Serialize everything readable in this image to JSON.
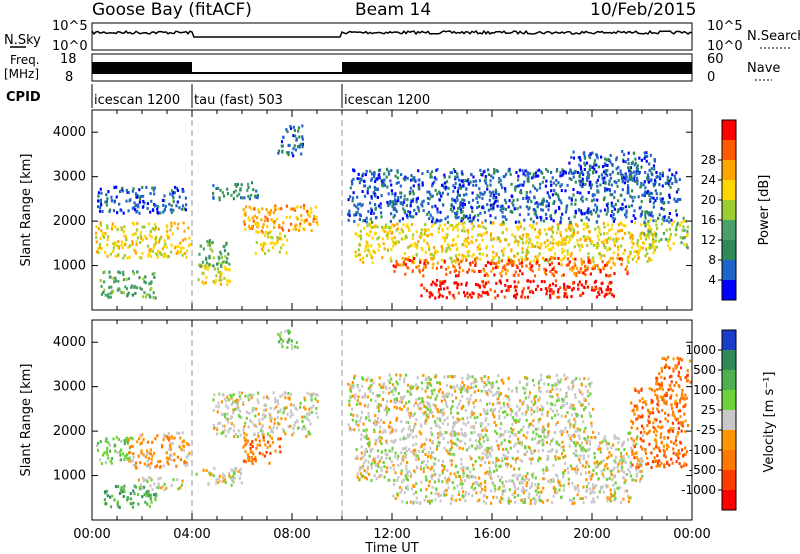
{
  "header": {
    "station": "Goose Bay (fitACF)",
    "beam": "Beam 14",
    "date": "10/Feb/2015"
  },
  "summary": {
    "nsky_label": "N.Sky",
    "nsky_ticks": [
      "10^5",
      "10^0"
    ],
    "nsearch_label": "N.Search",
    "nsearch_ticks": [
      "10^5",
      "10^0"
    ],
    "freq_label": "Freq.",
    "freq_unit": "[MHz]",
    "freq_ticks": [
      "18",
      "8"
    ],
    "nave_label": "Nave",
    "nave_ticks": [
      "60",
      "0"
    ],
    "cpid_label": "CPID",
    "modes": [
      {
        "label": "icescan 1200",
        "start": 0,
        "end": 4.0
      },
      {
        "label": "tau (fast) 503",
        "start": 4.0,
        "end": 10.0
      },
      {
        "label": "icescan 1200",
        "start": 10.0,
        "end": 24.0
      }
    ]
  },
  "chart_data": [
    {
      "type": "heatmap",
      "name": "power",
      "ylabel": "Slant Range [km]",
      "yticks": [
        1000,
        2000,
        3000,
        4000
      ],
      "ylim": [
        0,
        4500
      ],
      "xlim": [
        0,
        24
      ],
      "colorbar_label": "Power [dB]",
      "colorbar_ticks": [
        "4",
        "8",
        "12",
        "16",
        "20",
        "24",
        "28"
      ],
      "colorbar_colors": [
        "#0000ff",
        "#1e64c8",
        "#2e8b57",
        "#4aa06a",
        "#9acd32",
        "#ffd700",
        "#ffa500",
        "#ff5a00",
        "#ff0000"
      ],
      "regions": [
        {
          "t0": 0.1,
          "t1": 3.9,
          "r0": 1200,
          "r1": 2000,
          "level": 5
        },
        {
          "t0": 0.2,
          "t1": 3.8,
          "r0": 2200,
          "r1": 2800,
          "level": 1
        },
        {
          "t0": 0.3,
          "t1": 2.5,
          "r0": 300,
          "r1": 900,
          "level": 3
        },
        {
          "t0": 4.2,
          "t1": 5.5,
          "r0": 600,
          "r1": 1100,
          "level": 5
        },
        {
          "t0": 4.2,
          "t1": 5.5,
          "r0": 1000,
          "r1": 1600,
          "level": 3
        },
        {
          "t0": 4.8,
          "t1": 6.6,
          "r0": 2500,
          "r1": 2900,
          "level": 2
        },
        {
          "t0": 6.0,
          "t1": 9.0,
          "r0": 1800,
          "r1": 2400,
          "level": 6
        },
        {
          "t0": 6.4,
          "t1": 7.8,
          "r0": 1300,
          "r1": 1800,
          "level": 5
        },
        {
          "t0": 7.4,
          "t1": 8.4,
          "r0": 3500,
          "r1": 4200,
          "level": 1
        },
        {
          "t0": 10.5,
          "t1": 22.5,
          "r0": 1100,
          "r1": 2000,
          "level": 5
        },
        {
          "t0": 12.0,
          "t1": 21.5,
          "r0": 800,
          "r1": 1200,
          "level": 7
        },
        {
          "t0": 13.0,
          "t1": 21.0,
          "r0": 300,
          "r1": 700,
          "level": 8
        },
        {
          "t0": 10.2,
          "t1": 23.5,
          "r0": 2000,
          "r1": 3200,
          "level": 1
        },
        {
          "t0": 22.0,
          "t1": 23.8,
          "r0": 1400,
          "r1": 2100,
          "level": 4
        },
        {
          "t0": 19.0,
          "t1": 22.5,
          "r0": 2900,
          "r1": 3600,
          "level": 1
        }
      ]
    },
    {
      "type": "heatmap",
      "name": "velocity",
      "ylabel": "Slant Range [km]",
      "yticks": [
        1000,
        2000,
        3000,
        4000
      ],
      "ylim": [
        0,
        4500
      ],
      "xlim": [
        0,
        24
      ],
      "xlabel": "Time UT",
      "xticks": [
        "00:00",
        "04:00",
        "08:00",
        "12:00",
        "16:00",
        "20:00",
        "00:00"
      ],
      "colorbar_label": "Velocity [m s⁻¹]",
      "colorbar_ticks": [
        "1000",
        "500",
        "100",
        "25",
        "-25",
        "-100",
        "-500",
        "-1000"
      ],
      "colorbar_colors": [
        "#1a3cc8",
        "#2e8b57",
        "#50b050",
        "#6ed23c",
        "#c8c8c8",
        "#ff9600",
        "#ff7800",
        "#ff3c00",
        "#ff0000"
      ],
      "regions": [
        {
          "t0": 0.1,
          "t1": 1.6,
          "r0": 1300,
          "r1": 1900,
          "level": 3
        },
        {
          "t0": 1.4,
          "t1": 3.9,
          "r0": 1200,
          "r1": 2000,
          "level": 5
        },
        {
          "t0": 0.4,
          "t1": 2.6,
          "r0": 300,
          "r1": 800,
          "level": 2
        },
        {
          "t0": 1.8,
          "t1": 3.6,
          "r0": 700,
          "r1": 1000,
          "level": 4
        },
        {
          "t0": 4.1,
          "t1": 6.0,
          "r0": 800,
          "r1": 1200,
          "level": 4
        },
        {
          "t0": 4.8,
          "t1": 9.0,
          "r0": 1900,
          "r1": 2900,
          "level": 4
        },
        {
          "t0": 6.0,
          "t1": 7.5,
          "r0": 1300,
          "r1": 1900,
          "level": 6
        },
        {
          "t0": 7.4,
          "t1": 8.2,
          "r0": 3800,
          "r1": 4300,
          "level": 3
        },
        {
          "t0": 10.5,
          "t1": 22.0,
          "r0": 900,
          "r1": 2000,
          "level": 4
        },
        {
          "t0": 12.0,
          "t1": 21.5,
          "r0": 400,
          "r1": 900,
          "level": 4
        },
        {
          "t0": 21.5,
          "t1": 23.8,
          "r0": 1200,
          "r1": 3000,
          "level": 6
        },
        {
          "t0": 10.2,
          "t1": 20.0,
          "r0": 2000,
          "r1": 3300,
          "level": 4
        },
        {
          "t0": 22.5,
          "t1": 23.9,
          "r0": 3000,
          "r1": 3700,
          "level": 6
        }
      ]
    }
  ]
}
